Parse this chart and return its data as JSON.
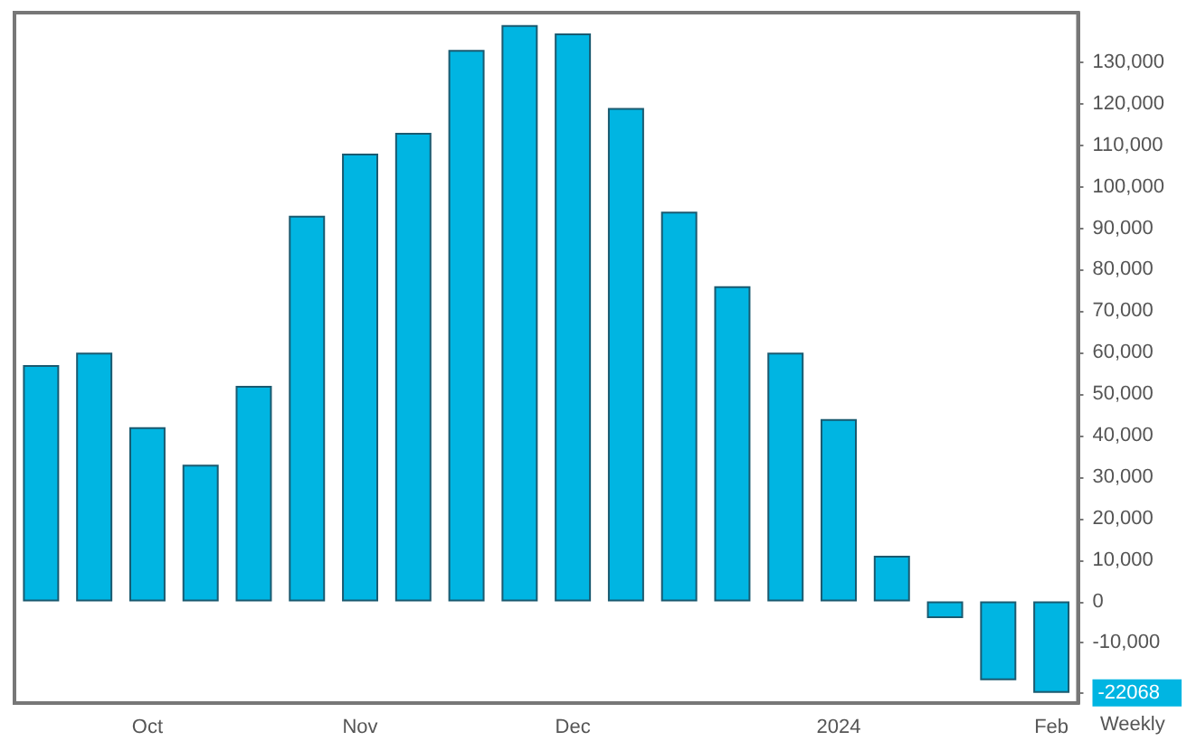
{
  "chart_data": {
    "type": "bar",
    "categories": [
      null,
      null,
      "Oct",
      null,
      null,
      null,
      "Nov",
      null,
      null,
      null,
      "Dec",
      null,
      null,
      null,
      null,
      "2024",
      null,
      null,
      null,
      "Feb"
    ],
    "values": [
      57000,
      60000,
      42000,
      33000,
      52000,
      93000,
      108000,
      113000,
      133000,
      139000,
      137000,
      119000,
      94000,
      76000,
      60000,
      44000,
      11000,
      -4000,
      -19000,
      -22068
    ],
    "color": "#00b5e2",
    "ylim": [
      -24500,
      142000
    ],
    "yticks": [
      {
        "value": -22068,
        "label": "-22068"
      },
      {
        "value": -10000,
        "label": "-10,000"
      },
      0,
      {
        "value": 10000,
        "label": "10,000"
      },
      {
        "value": 20000,
        "label": "20,000"
      },
      {
        "value": 30000,
        "label": "30,000"
      },
      {
        "value": 40000,
        "label": "40,000"
      },
      {
        "value": 50000,
        "label": "50,000"
      },
      {
        "value": 60000,
        "label": "60,000"
      },
      {
        "value": 70000,
        "label": "70,000"
      },
      {
        "value": 80000,
        "label": "80,000"
      },
      {
        "value": 90000,
        "label": "90,000"
      },
      {
        "value": 100000,
        "label": "100,000"
      },
      {
        "value": 110000,
        "label": "110,000"
      },
      {
        "value": 120000,
        "label": "120,000"
      },
      {
        "value": 130000,
        "label": "130,000"
      }
    ],
    "annotations": [
      "Weekly"
    ],
    "grid": false
  }
}
